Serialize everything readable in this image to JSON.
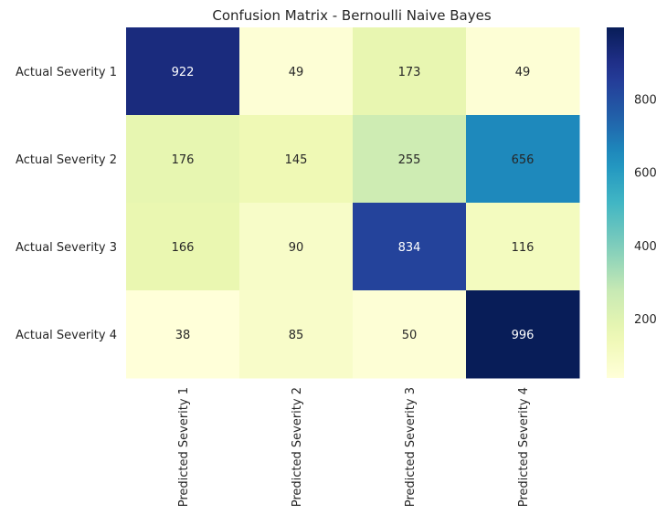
{
  "chart_data": {
    "type": "heatmap",
    "title": "Confusion Matrix - Bernoulli Naive Bayes",
    "xlabel": "",
    "ylabel": "",
    "x_categories": [
      "Predicted Severity 1",
      "Predicted Severity 2",
      "Predicted Severity 3",
      "Predicted Severity 4"
    ],
    "y_categories": [
      "Actual Severity 1",
      "Actual Severity 2",
      "Actual Severity 3",
      "Actual Severity 4"
    ],
    "values": [
      [
        922,
        49,
        173,
        49
      ],
      [
        176,
        145,
        255,
        656
      ],
      [
        166,
        90,
        834,
        116
      ],
      [
        38,
        85,
        50,
        996
      ]
    ],
    "colormap": "YlGnBu",
    "vmin": 38,
    "vmax": 996,
    "colorbar_ticks": [
      200,
      400,
      600,
      800
    ],
    "annotations": true,
    "grid": false
  }
}
